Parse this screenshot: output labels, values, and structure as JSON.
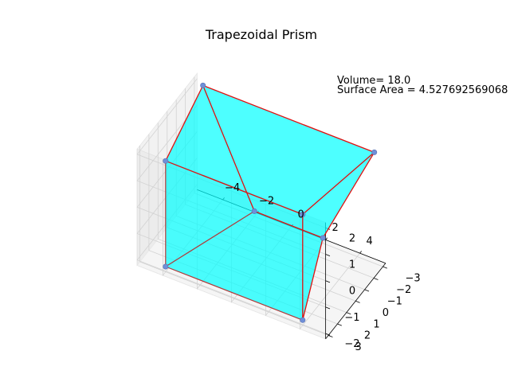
{
  "chart_data": {
    "type": "3d-polyhedron",
    "title": "Trapezoidal Prism",
    "annotations": [
      "Volume= 18.0",
      "Surface Area = 4.527692569068"
    ],
    "x_ticks": [
      -4,
      -2,
      0,
      2,
      4
    ],
    "y_ticks": [
      -3,
      -2,
      -1,
      0,
      1,
      2,
      3
    ],
    "z_ticks": [
      -2,
      -1,
      0,
      1,
      2
    ],
    "xlim": [
      -5.5,
      5.5
    ],
    "ylim": [
      -3.3,
      3.3
    ],
    "zlim": [
      -2.2,
      2.2
    ],
    "grid": true,
    "vertices": [
      {
        "x": -2,
        "y": -3,
        "z": -2
      },
      {
        "x": 2,
        "y": -3,
        "z": -2
      },
      {
        "x": 4,
        "y": 3,
        "z": -2
      },
      {
        "x": -4,
        "y": 3,
        "z": -2
      },
      {
        "x": -5,
        "y": -3,
        "z": 2
      },
      {
        "x": 5,
        "y": -3,
        "z": 2
      },
      {
        "x": 4,
        "y": 3,
        "z": 2
      },
      {
        "x": -4,
        "y": 3,
        "z": 2
      }
    ],
    "faces": [
      [
        0,
        1,
        2,
        3
      ],
      [
        4,
        5,
        6,
        7
      ],
      [
        0,
        1,
        5,
        4
      ],
      [
        1,
        2,
        6,
        5
      ],
      [
        2,
        3,
        7,
        6
      ],
      [
        3,
        0,
        4,
        7
      ]
    ],
    "colors": {
      "face": "#00ffff",
      "edge": "#e01010",
      "vertex": "#6f8fd8"
    }
  }
}
